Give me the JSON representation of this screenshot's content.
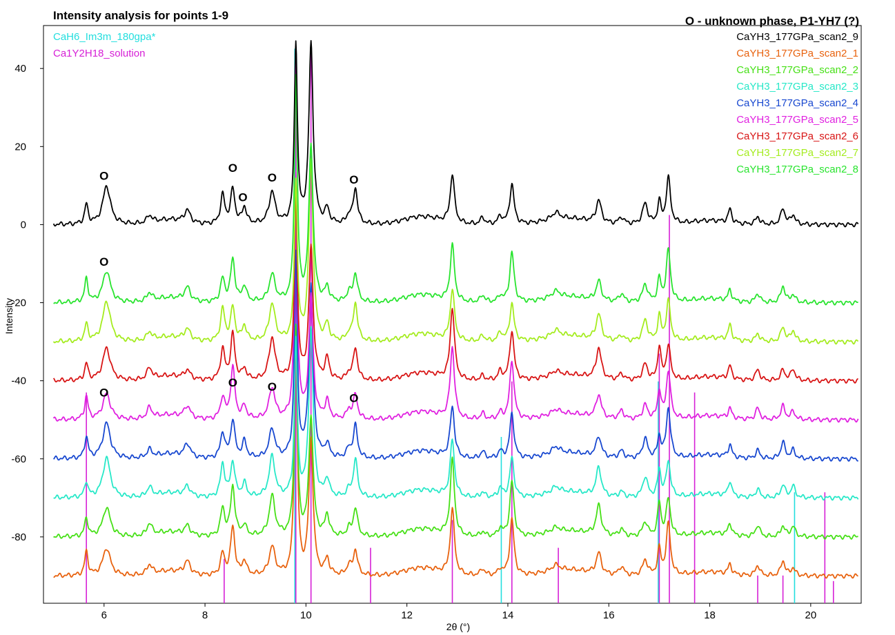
{
  "chart_data": {
    "type": "line",
    "title": "Intensity analysis for points 1-9",
    "xlabel": "2θ (°)",
    "ylabel": "Intensity",
    "xlim": [
      4.8,
      21.0
    ],
    "ylim": [
      -97,
      51
    ],
    "xticks": [
      6,
      8,
      10,
      12,
      14,
      16,
      18,
      20
    ],
    "yticks": [
      40,
      20,
      0,
      -20,
      -40,
      -60,
      -80
    ],
    "legend_right_title": "O - unknown phase, P1-YH7 (?)",
    "reference_phases": [
      {
        "name": "CaH6_Im3m_180gpa*",
        "color": "#22dede",
        "lines": [
          [
            9.78,
            100
          ],
          [
            13.87,
            30
          ],
          [
            16.98,
            40
          ],
          [
            19.68,
            20
          ]
        ]
      },
      {
        "name": "Ca1Y2H18_solution",
        "color": "#d620d6",
        "lines": [
          [
            5.65,
            38
          ],
          [
            8.38,
            8
          ],
          [
            9.8,
            98
          ],
          [
            10.1,
            100
          ],
          [
            11.28,
            10
          ],
          [
            12.9,
            15
          ],
          [
            14.08,
            40
          ],
          [
            15.0,
            10
          ],
          [
            17.0,
            45
          ],
          [
            17.2,
            70
          ],
          [
            17.7,
            38
          ],
          [
            18.95,
            5
          ],
          [
            19.45,
            5
          ],
          [
            20.28,
            20
          ],
          [
            20.45,
            4
          ]
        ]
      }
    ],
    "series": [
      {
        "name": "CaYH3_177GPa_scan2_9",
        "color": "#000000",
        "offset": 0
      },
      {
        "name": "CaYH3_177GPa_scan2_1",
        "color": "#e8620e",
        "offset": -90
      },
      {
        "name": "CaYH3_177GPa_scan2_2",
        "color": "#46e016",
        "offset": -80
      },
      {
        "name": "CaYH3_177GPa_scan2_3",
        "color": "#26e8c8",
        "offset": -70
      },
      {
        "name": "CaYH3_177GPa_scan2_4",
        "color": "#1848d0",
        "offset": -60
      },
      {
        "name": "CaYH3_177GPa_scan2_5",
        "color": "#e020e0",
        "offset": -50
      },
      {
        "name": "CaYH3_177GPa_scan2_6",
        "color": "#d81414",
        "offset": -40
      },
      {
        "name": "CaYH3_177GPa_scan2_7",
        "color": "#a4ec1e",
        "offset": -30
      },
      {
        "name": "CaYH3_177GPa_scan2_8",
        "color": "#28e42e",
        "offset": -20
      }
    ],
    "peaks": [
      [
        5.65,
        5.0,
        0.04
      ],
      [
        6.05,
        8.5,
        0.09
      ],
      [
        6.9,
        2.5,
        0.06
      ],
      [
        7.65,
        2.8,
        0.07
      ],
      [
        8.35,
        7.0,
        0.05
      ],
      [
        8.55,
        11.0,
        0.05
      ],
      [
        8.78,
        3.5,
        0.05
      ],
      [
        9.33,
        9.0,
        0.07
      ],
      [
        9.8,
        51.0,
        0.035
      ],
      [
        10.1,
        38.0,
        0.05
      ],
      [
        10.42,
        4.5,
        0.05
      ],
      [
        10.85,
        2.0,
        0.05
      ],
      [
        10.98,
        8.0,
        0.05
      ],
      [
        12.9,
        16.0,
        0.05
      ],
      [
        13.5,
        1.5,
        0.05
      ],
      [
        13.85,
        2.0,
        0.05
      ],
      [
        14.08,
        12.5,
        0.05
      ],
      [
        14.95,
        1.5,
        0.1
      ],
      [
        15.8,
        6.5,
        0.06
      ],
      [
        16.25,
        1.8,
        0.06
      ],
      [
        16.72,
        4.5,
        0.06
      ],
      [
        17.0,
        7.0,
        0.04
      ],
      [
        17.18,
        11.0,
        0.05
      ],
      [
        18.4,
        3.2,
        0.04
      ],
      [
        18.95,
        2.5,
        0.05
      ],
      [
        19.45,
        3.5,
        0.05
      ],
      [
        19.65,
        2.5,
        0.05
      ]
    ],
    "bumps": [
      [
        7.3,
        1.2,
        0.4
      ],
      [
        12.3,
        2.0,
        0.5
      ],
      [
        15.2,
        1.5,
        0.6
      ],
      [
        18.0,
        1.0,
        0.5
      ]
    ],
    "annotations": [
      {
        "text": "O",
        "x": 6.0,
        "y": 11.5
      },
      {
        "text": "O",
        "x": 8.55,
        "y": 13.5
      },
      {
        "text": "O",
        "x": 8.75,
        "y": 6.0
      },
      {
        "text": "O",
        "x": 9.33,
        "y": 11.0
      },
      {
        "text": "O",
        "x": 10.95,
        "y": 10.5
      },
      {
        "text": "O",
        "x": 6.0,
        "y": -10.5
      },
      {
        "text": "O",
        "x": 6.0,
        "y": -44.0
      },
      {
        "text": "O",
        "x": 8.55,
        "y": -41.5
      },
      {
        "text": "O",
        "x": 9.33,
        "y": -42.5
      },
      {
        "text": "O",
        "x": 10.95,
        "y": -45.5
      }
    ]
  }
}
